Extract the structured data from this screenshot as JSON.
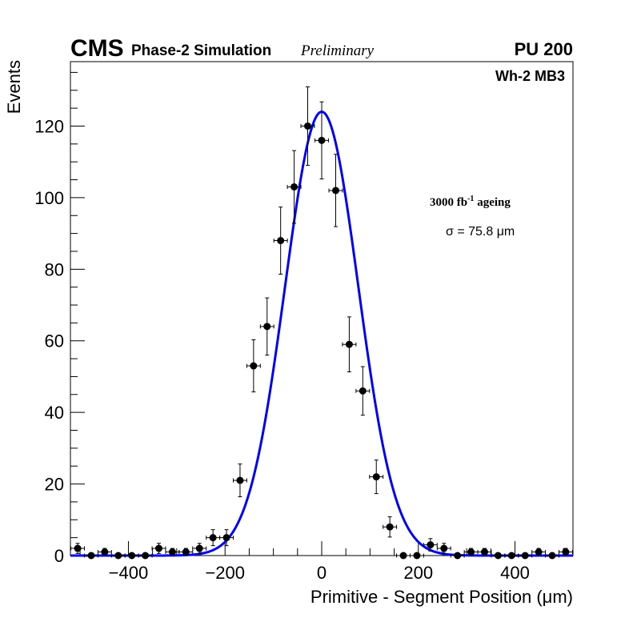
{
  "header": {
    "experiment": "CMS",
    "simulation": "Phase-2 Simulation",
    "status": "Preliminary",
    "pileup": "PU 200"
  },
  "chart_data": {
    "type": "scatter",
    "title": "",
    "xlabel": "Primitive - Segment Position (μm)",
    "ylabel": "Events",
    "xlim": [
      -520,
      520
    ],
    "ylim": [
      0,
      138
    ],
    "x_ticks": [
      -400,
      -200,
      0,
      200,
      400
    ],
    "x_tick_labels": [
      "−400",
      "−200",
      "0",
      "200",
      "400"
    ],
    "y_ticks": [
      0,
      20,
      40,
      60,
      80,
      100,
      120
    ],
    "y_tick_labels": [
      "0",
      "20",
      "40",
      "60",
      "80",
      "100",
      "120"
    ],
    "bin_halfwidth": 14,
    "annotations": {
      "region": "Wh-2 MB3",
      "lumi_value": "3000 fb",
      "lumi_exponent": "-1",
      "lumi_suffix": " ageing",
      "sigma_text": "σ = 75.8 μm"
    },
    "series": [
      {
        "name": "data",
        "color": "#000000",
        "x": [
          -505,
          -477,
          -449,
          -421,
          -393,
          -365,
          -337,
          -309,
          -281,
          -253,
          -225,
          -197,
          -169,
          -141,
          -113,
          -85,
          -57,
          -29,
          0,
          29,
          57,
          85,
          113,
          141,
          169,
          197,
          225,
          253,
          281,
          309,
          337,
          365,
          393,
          421,
          449,
          477,
          505
        ],
        "y": [
          2,
          0,
          1,
          0,
          0,
          0,
          2,
          1,
          1,
          2,
          5,
          5,
          21,
          53,
          64,
          88,
          103,
          120,
          116,
          102,
          59,
          46,
          22,
          8,
          0,
          0,
          3,
          2,
          0,
          1,
          1,
          0,
          0,
          0,
          1,
          0,
          1
        ]
      },
      {
        "name": "gaussian fit",
        "color": "#0000ff",
        "amplitude": 124,
        "mean": 0,
        "sigma": 75.8
      }
    ]
  }
}
